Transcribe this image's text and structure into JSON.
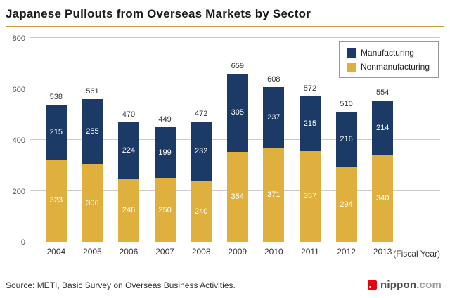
{
  "title": "Japanese Pullouts from Overseas Markets by Sector",
  "axis": {
    "y_ticks": [
      0,
      200,
      400,
      600,
      800
    ],
    "x_unit_label": "(Fiscal Year)"
  },
  "legend": [
    {
      "label": "Manufacturing",
      "color": "#1c3a66"
    },
    {
      "label": "Nonmanufacturing",
      "color": "#dfb03d"
    }
  ],
  "chart_data": {
    "type": "bar",
    "stacked": true,
    "title": "Japanese Pullouts from Overseas Markets by Sector",
    "categories": [
      "2004",
      "2005",
      "2006",
      "2007",
      "2008",
      "2009",
      "2010",
      "2011",
      "2012",
      "2013"
    ],
    "series": [
      {
        "name": "Manufacturing",
        "color": "#1c3a66",
        "values": [
          215,
          255,
          224,
          199,
          232,
          305,
          237,
          215,
          216,
          214
        ]
      },
      {
        "name": "Nonmanufacturing",
        "color": "#dfb03d",
        "values": [
          323,
          306,
          246,
          250,
          240,
          354,
          371,
          357,
          294,
          340
        ]
      }
    ],
    "totals": [
      538,
      561,
      470,
      449,
      472,
      659,
      608,
      572,
      510,
      554
    ],
    "xlabel": "(Fiscal Year)",
    "ylabel": "",
    "ylim": [
      0,
      800
    ],
    "grid": true,
    "legend_position": "top-right"
  },
  "footer": {
    "source": "Source: METI, Basic Survey on Overseas Business Activities.",
    "logo_main": "nippon",
    "logo_suffix": ".com"
  },
  "colors": {
    "manufacturing": "#1c3a66",
    "nonmanufacturing": "#dfb03d",
    "title_rule": "#c69c36",
    "logo_red": "#e60012",
    "gridline": "#cccccc"
  }
}
